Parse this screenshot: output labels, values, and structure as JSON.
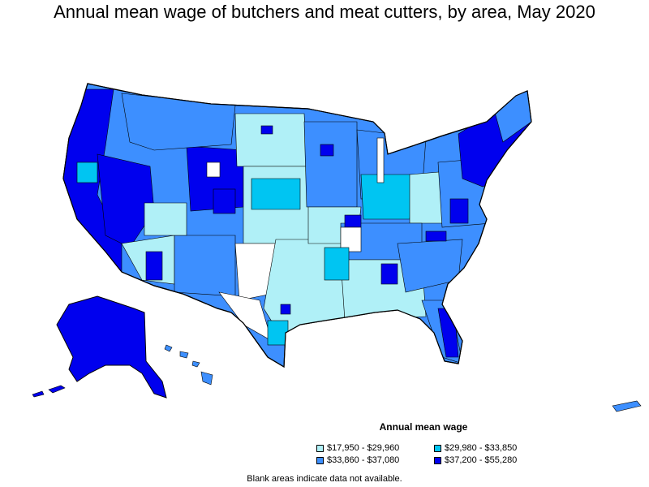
{
  "title": "Annual mean wage of butchers and meat cutters, by area, May 2020",
  "legend": {
    "title": "Annual mean wage",
    "items": [
      {
        "label": "$17,950 - $29,960",
        "color": "#b0f0f7"
      },
      {
        "label": "$29,980 - $33,850",
        "color": "#00c5f2"
      },
      {
        "label": "$33,860 - $37,080",
        "color": "#3d8fff"
      },
      {
        "label": "$37,200 - $55,280",
        "color": "#0000ee"
      }
    ]
  },
  "note": "Blank areas indicate data not available.",
  "colors": {
    "outline": "#000000",
    "blank": "#ffffff"
  }
}
